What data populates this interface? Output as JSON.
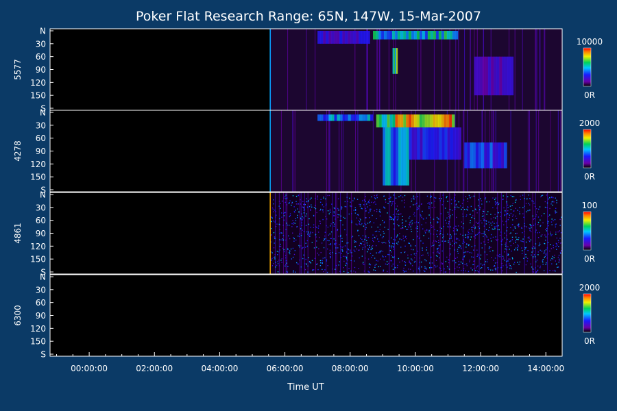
{
  "chart_data": {
    "type": "heatmap",
    "title": "Poker Flat Research Range: 65N, 147W, 15-Mar-2007",
    "xlabel": "Time UT",
    "x_ticks": [
      "00:00:00",
      "02:00:00",
      "04:00:00",
      "06:00:00",
      "08:00:00",
      "10:00:00",
      "12:00:00",
      "14:00:00"
    ],
    "x_range_hours": [
      -1.2,
      14.5
    ],
    "y_ticks": [
      "N",
      "30",
      "60",
      "90",
      "120",
      "150",
      "S"
    ],
    "data_start_hour": 5.55,
    "panels": [
      {
        "name": "5577",
        "colorbar_max": "10000",
        "colorbar_min": "0R",
        "has_data": true,
        "features": [
          {
            "t0": 7.0,
            "t1": 8.6,
            "lat0": 0,
            "lat1": 30,
            "level": 0.25
          },
          {
            "t0": 8.7,
            "t1": 11.3,
            "lat0": 0,
            "lat1": 20,
            "level": 0.55
          },
          {
            "t0": 9.3,
            "t1": 9.45,
            "lat0": 40,
            "lat1": 100,
            "level": 0.7
          },
          {
            "t0": 11.8,
            "t1": 13.0,
            "lat0": 60,
            "lat1": 150,
            "level": 0.2
          }
        ]
      },
      {
        "name": "4278",
        "colorbar_max": "2000",
        "colorbar_min": "0R",
        "has_data": true,
        "features": [
          {
            "t0": 7.0,
            "t1": 8.7,
            "lat0": 5,
            "lat1": 20,
            "level": 0.45
          },
          {
            "t0": 8.8,
            "t1": 11.2,
            "lat0": 5,
            "lat1": 35,
            "level": 0.8
          },
          {
            "t0": 9.0,
            "t1": 9.8,
            "lat0": 35,
            "lat1": 170,
            "level": 0.45
          },
          {
            "t0": 9.8,
            "t1": 11.4,
            "lat0": 35,
            "lat1": 110,
            "level": 0.3
          },
          {
            "t0": 11.5,
            "t1": 12.8,
            "lat0": 70,
            "lat1": 130,
            "level": 0.35
          }
        ]
      },
      {
        "name": "4861",
        "colorbar_max": "100",
        "colorbar_min": "0R",
        "has_data": true,
        "noise_level": 0.3,
        "features": []
      },
      {
        "name": "6300",
        "colorbar_max": "2000",
        "colorbar_min": "0R",
        "has_data": false,
        "features": []
      }
    ]
  }
}
